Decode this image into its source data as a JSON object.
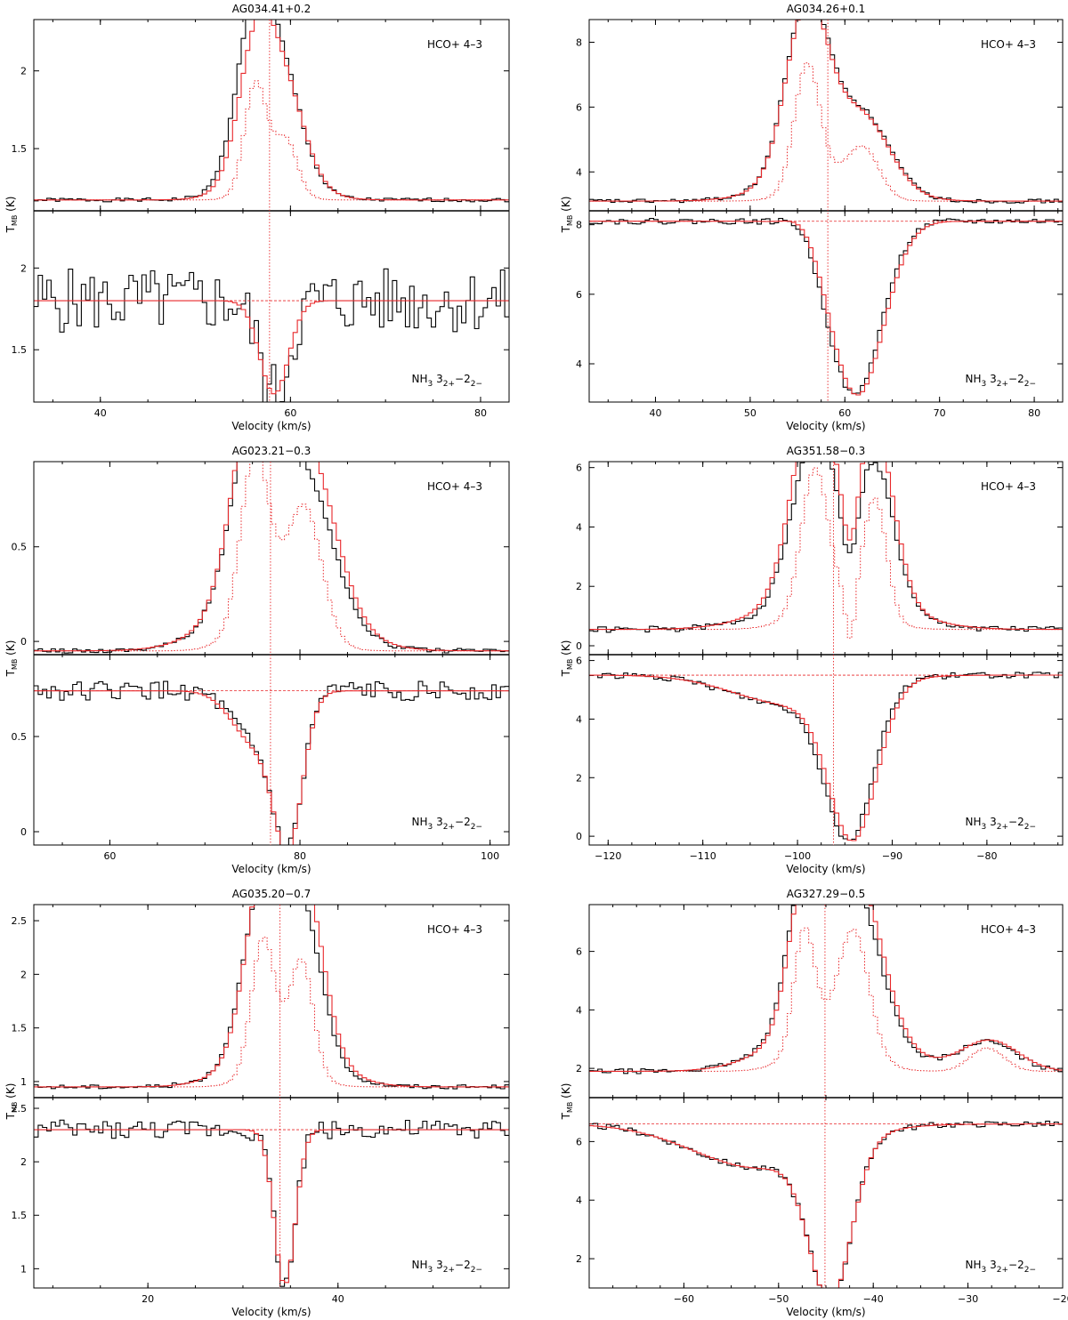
{
  "figure": {
    "ylabel": "T",
    "ylabel_sub": "MB",
    "ylabel_unit": " (K)",
    "xlabel": "Velocity (km/s)"
  },
  "colors": {
    "observed": "#000000",
    "model": "#e8272a",
    "axes": "#000000"
  },
  "chart_data": [
    {
      "type": "line",
      "title": "AG034.41+0.2",
      "xlim": [
        33,
        83
      ],
      "xticks": [
        40,
        60,
        80
      ],
      "vlsr": 57.8,
      "top": {
        "label": "HCO+ 4–3",
        "ylim": [
          1.1,
          2.33
        ],
        "yticks": [
          1.5,
          2
        ],
        "baseline": 1.17,
        "components": [
          {
            "amp": 1.03,
            "center": 56.3,
            "width": 1.9
          },
          {
            "amp": 0.46,
            "center": 59.6,
            "width": 1.9
          },
          {
            "amp": 0.25,
            "center": 57.8,
            "width": 3.5
          }
        ],
        "model_scale": 0.88,
        "model_shift": 0.3,
        "dotted_scale": 0.62,
        "noise": 0.012
      },
      "bottom": {
        "label": "NH3 3(2+)–2(2−)",
        "ylim": [
          1.18,
          2.35
        ],
        "yticks": [
          1.5,
          2
        ],
        "baseline": 1.8,
        "components": [
          {
            "amp": -0.57,
            "center": 58.3,
            "width": 1.5
          }
        ],
        "model_scale": 1.0,
        "model_shift": 0.0,
        "noise": 0.2
      }
    },
    {
      "type": "line",
      "title": "AG034.26+0.1",
      "xlim": [
        33,
        83
      ],
      "xticks": [
        40,
        50,
        60,
        70,
        80
      ],
      "vlsr": 58.2,
      "top": {
        "label": "HCO+ 4–3",
        "ylim": [
          2.8,
          8.7
        ],
        "yticks": [
          4,
          6,
          8
        ],
        "baseline": 3.1,
        "components": [
          {
            "amp": 5.3,
            "center": 56.0,
            "width": 2.2
          },
          {
            "amp": 2.0,
            "center": 62.0,
            "width": 2.8
          },
          {
            "amp": 1.0,
            "center": 58.0,
            "width": 5.0
          }
        ],
        "model_scale": 0.97,
        "model_shift": 0.0,
        "dotted_scale": 0.7,
        "noise": 0.06
      },
      "bottom": {
        "label": "NH3 3(2+)–2(2−)",
        "ylim": [
          2.9,
          8.4
        ],
        "yticks": [
          4,
          6,
          8
        ],
        "baseline": 8.1,
        "components": [
          {
            "amp": -5.0,
            "center": 61.0,
            "width": 2.8
          },
          {
            "amp": 0.35,
            "center": 55.5,
            "width": 1.5
          }
        ],
        "model_scale": 1.0,
        "model_shift": 0.3,
        "noise": 0.08
      }
    },
    {
      "type": "line",
      "title": "AG023.21−0.3",
      "xlim": [
        52,
        102
      ],
      "xticks": [
        60,
        80,
        100
      ],
      "vlsr": 76.9,
      "top": {
        "label": "HCO+ 4–3",
        "ylim": [
          -0.07,
          0.95
        ],
        "yticks": [
          0,
          0.5
        ],
        "baseline": -0.05,
        "components": [
          {
            "amp": 0.93,
            "center": 75.2,
            "width": 2.4
          },
          {
            "amp": 0.66,
            "center": 80.6,
            "width": 2.9
          },
          {
            "amp": 0.3,
            "center": 77.5,
            "width": 5.5
          }
        ],
        "model_scale": 1.15,
        "model_shift": 0.2,
        "dotted_scale": 0.9,
        "noise": 0.012
      },
      "bottom": {
        "label": "NH3 3(2+)–2(2−)",
        "ylim": [
          -0.07,
          0.93
        ],
        "yticks": [
          0,
          0.5
        ],
        "baseline": 0.74,
        "components": [
          {
            "amp": -0.72,
            "center": 78.8,
            "width": 1.5
          },
          {
            "amp": -0.28,
            "center": 75.5,
            "width": 2.5
          }
        ],
        "model_scale": 1.0,
        "model_shift": 0.0,
        "noise": 0.05
      }
    },
    {
      "type": "line",
      "title": "AG351.58−0.3",
      "xlim": [
        -122,
        -72
      ],
      "xticks": [
        -120,
        -110,
        -100,
        -90,
        -80
      ],
      "vlsr": -96.2,
      "top": {
        "label": "HCO+ 4–3",
        "ylim": [
          -0.3,
          6.2
        ],
        "yticks": [
          0,
          2,
          4,
          6
        ],
        "baseline": 0.55,
        "components": [
          {
            "amp": 5.4,
            "center": -98.2,
            "width": 2.3
          },
          {
            "amp": 4.6,
            "center": -91.8,
            "width": 2.0
          },
          {
            "amp": -2.0,
            "center": -94.4,
            "width": 0.8
          },
          {
            "amp": 1.2,
            "center": -96.0,
            "width": 6.0
          }
        ],
        "model_scale": 1.2,
        "model_shift": 0.0,
        "dotted_scale": 0.85,
        "noise": 0.1
      },
      "bottom": {
        "label": "NH3 3(2+)–2(2−)",
        "ylim": [
          -0.3,
          6.2
        ],
        "yticks": [
          0,
          2,
          4,
          6
        ],
        "baseline": 5.5,
        "components": [
          {
            "amp": -5.1,
            "center": -94.5,
            "width": 2.5
          },
          {
            "amp": -1.0,
            "center": -101.0,
            "width": 6.0
          }
        ],
        "model_scale": 1.0,
        "model_shift": 0.4,
        "noise": 0.1
      }
    },
    {
      "type": "line",
      "title": "AG035.20−0.7",
      "xlim": [
        8,
        58
      ],
      "xticks": [
        20,
        40
      ],
      "vlsr": 33.9,
      "top": {
        "label": "HCO+ 4–3",
        "ylim": [
          0.85,
          2.65
        ],
        "yticks": [
          1,
          1.5,
          2,
          2.5
        ],
        "baseline": 0.95,
        "components": [
          {
            "amp": 1.55,
            "center": 32.1,
            "width": 2.0
          },
          {
            "amp": 1.3,
            "center": 36.2,
            "width": 2.0
          },
          {
            "amp": 0.4,
            "center": 34.0,
            "width": 4.5
          }
        ],
        "model_scale": 1.1,
        "model_shift": 0.3,
        "dotted_scale": 0.75,
        "noise": 0.02
      },
      "bottom": {
        "label": "NH3 3(2+)–2(2−)",
        "ylim": [
          0.82,
          2.6
        ],
        "yticks": [
          1,
          1.5,
          2,
          2.5
        ],
        "baseline": 2.3,
        "components": [
          {
            "amp": -1.45,
            "center": 34.4,
            "width": 1.1
          }
        ],
        "model_scale": 1.0,
        "model_shift": 0.0,
        "noise": 0.09
      }
    },
    {
      "type": "line",
      "title": "AG327.29−0.5",
      "xlim": [
        -70,
        -20
      ],
      "xticks": [
        -60,
        -50,
        -40,
        -30,
        -20
      ],
      "vlsr": -45.1,
      "top": {
        "label": "HCO+ 4–3",
        "ylim": [
          1.0,
          7.6
        ],
        "yticks": [
          2,
          4,
          6
        ],
        "baseline": 1.9,
        "components": [
          {
            "amp": 4.9,
            "center": -47.3,
            "width": 1.8
          },
          {
            "amp": 4.7,
            "center": -42.0,
            "width": 2.6
          },
          {
            "amp": 1.8,
            "center": -44.5,
            "width": 5.5
          },
          {
            "amp": 1.0,
            "center": -28.0,
            "width": 3.0
          }
        ],
        "model_scale": 1.05,
        "model_shift": 0.3,
        "dotted_scale": 0.8,
        "noise": 0.08
      },
      "bottom": {
        "label": "NH3 3(2+)–2(2−)",
        "ylim": [
          1.0,
          7.5
        ],
        "yticks": [
          2,
          4,
          6
        ],
        "baseline": 6.6,
        "components": [
          {
            "amp": -5.2,
            "center": -44.5,
            "width": 2.2
          },
          {
            "amp": -1.5,
            "center": -52.0,
            "width": 7.0
          }
        ],
        "model_scale": 1.0,
        "model_shift": 0.0,
        "noise": 0.1
      }
    }
  ]
}
